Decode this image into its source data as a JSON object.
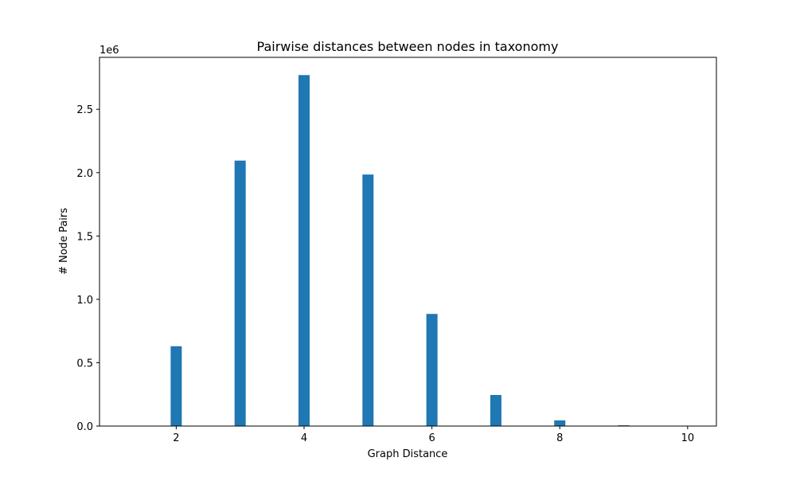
{
  "chart_data": {
    "type": "bar",
    "title": "Pairwise distances between nodes in taxonomy",
    "xlabel": "Graph Distance",
    "ylabel": "# Node Pairs",
    "y_offset_label": "1e6",
    "xlim": [
      0.8,
      10.45
    ],
    "ylim": [
      0,
      2910000
    ],
    "x_ticks": [
      2,
      4,
      6,
      8,
      10
    ],
    "y_ticks": [
      0.0,
      0.5,
      1.0,
      1.5,
      2.0,
      2.5
    ],
    "y_tick_labels": [
      "0.0",
      "0.5",
      "1.0",
      "1.5",
      "2.0",
      "2.5"
    ],
    "grid": false,
    "bar_color": "#1f77b4",
    "series": [
      {
        "x": [
          2,
          3,
          4,
          5,
          6,
          7,
          8,
          9,
          10
        ],
        "values": [
          630000,
          2095000,
          2770000,
          1985000,
          885000,
          245000,
          45000,
          6000,
          500
        ]
      }
    ]
  }
}
